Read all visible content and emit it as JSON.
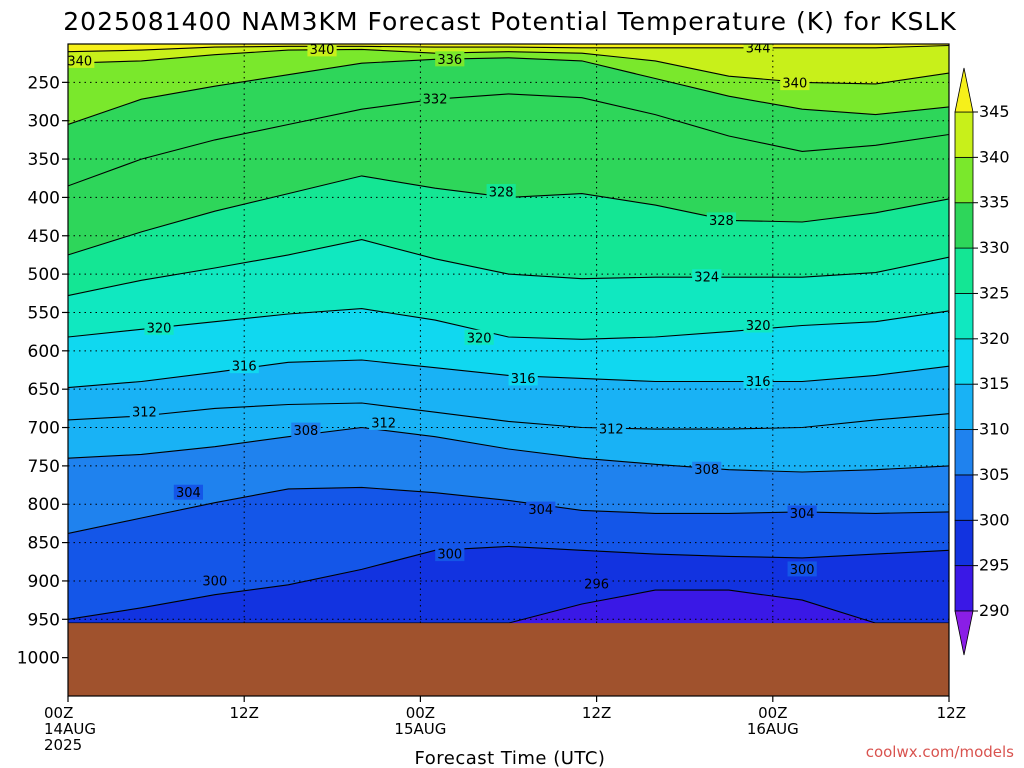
{
  "chart_data": {
    "type": "heatmap",
    "title": "2025081400 NAM3KM Forecast Potential Temperature (K) for KSLK",
    "xlabel": "Forecast Time (UTC)",
    "ylabel": "",
    "x_ticks": [
      {
        "hours": 0,
        "line1": "00Z",
        "line2": "14AUG",
        "line3": "2025"
      },
      {
        "hours": 12,
        "line1": "12Z",
        "line2": "",
        "line3": ""
      },
      {
        "hours": 24,
        "line1": "00Z",
        "line2": "15AUG",
        "line3": ""
      },
      {
        "hours": 36,
        "line1": "12Z",
        "line2": "",
        "line3": ""
      },
      {
        "hours": 48,
        "line1": "00Z",
        "line2": "16AUG",
        "line3": ""
      },
      {
        "hours": 60,
        "line1": "12Z",
        "line2": "",
        "line3": ""
      }
    ],
    "x_range_hours": [
      0,
      60
    ],
    "y_ticks_hpa": [
      250,
      300,
      350,
      400,
      450,
      500,
      550,
      600,
      650,
      700,
      750,
      800,
      850,
      900,
      950,
      1000
    ],
    "y_range_hpa": [
      200,
      1050
    ],
    "surface_pressure_hpa": 955,
    "colorbar": {
      "levels": [
        290,
        295,
        300,
        305,
        310,
        315,
        320,
        325,
        330,
        335,
        340,
        345
      ],
      "colors": [
        "#8a1ee6",
        "#3a18e6",
        "#1233e0",
        "#1456e8",
        "#1f82ee",
        "#19b2f5",
        "#10d8f0",
        "#10e8c0",
        "#14e694",
        "#2ed65a",
        "#7ae82c",
        "#c8f01a",
        "#f6f01a"
      ],
      "extend": "both"
    },
    "contour_labels": [
      {
        "text": "340",
        "hours": 0.8,
        "hpa": 222
      },
      {
        "text": "340",
        "hours": 17.3,
        "hpa": 207
      },
      {
        "text": "336",
        "hours": 26.0,
        "hpa": 220
      },
      {
        "text": "344",
        "hours": 47.0,
        "hpa": 205
      },
      {
        "text": "340",
        "hours": 49.5,
        "hpa": 251
      },
      {
        "text": "332",
        "hours": 25.0,
        "hpa": 272
      },
      {
        "text": "328",
        "hours": 29.5,
        "hpa": 393
      },
      {
        "text": "328",
        "hours": 44.5,
        "hpa": 430
      },
      {
        "text": "324",
        "hours": 43.5,
        "hpa": 504
      },
      {
        "text": "320",
        "hours": 6.2,
        "hpa": 570
      },
      {
        "text": "320",
        "hours": 28.0,
        "hpa": 583
      },
      {
        "text": "320",
        "hours": 47.0,
        "hpa": 567
      },
      {
        "text": "316",
        "hours": 12.0,
        "hpa": 620
      },
      {
        "text": "316",
        "hours": 31.0,
        "hpa": 636
      },
      {
        "text": "316",
        "hours": 47.0,
        "hpa": 640
      },
      {
        "text": "312",
        "hours": 5.2,
        "hpa": 680
      },
      {
        "text": "312",
        "hours": 21.5,
        "hpa": 694
      },
      {
        "text": "312",
        "hours": 37.0,
        "hpa": 702
      },
      {
        "text": "308",
        "hours": 16.2,
        "hpa": 704
      },
      {
        "text": "308",
        "hours": 43.5,
        "hpa": 755
      },
      {
        "text": "304",
        "hours": 8.2,
        "hpa": 785
      },
      {
        "text": "304",
        "hours": 32.2,
        "hpa": 807
      },
      {
        "text": "304",
        "hours": 50.0,
        "hpa": 812
      },
      {
        "text": "300",
        "hours": 10.0,
        "hpa": 900
      },
      {
        "text": "300",
        "hours": 26.0,
        "hpa": 865
      },
      {
        "text": "300",
        "hours": 50.0,
        "hpa": 885
      },
      {
        "text": "296",
        "hours": 36.0,
        "hpa": 904
      }
    ],
    "isentropes": [
      {
        "level": 296,
        "hpa": [
          955,
          955,
          955,
          955,
          955,
          955,
          955,
          930,
          912,
          912,
          925,
          955,
          955
        ]
      },
      {
        "level": 300,
        "hpa": [
          950,
          935,
          918,
          905,
          885,
          860,
          855,
          860,
          865,
          868,
          870,
          865,
          860
        ]
      },
      {
        "level": 304,
        "hpa": [
          838,
          818,
          798,
          780,
          778,
          785,
          795,
          808,
          812,
          812,
          810,
          812,
          810
        ]
      },
      {
        "level": 308,
        "hpa": [
          740,
          735,
          725,
          712,
          700,
          712,
          728,
          740,
          748,
          755,
          758,
          755,
          750
        ]
      },
      {
        "level": 312,
        "hpa": [
          690,
          685,
          675,
          670,
          668,
          680,
          692,
          700,
          702,
          702,
          700,
          690,
          682
        ]
      },
      {
        "level": 316,
        "hpa": [
          648,
          640,
          628,
          615,
          612,
          622,
          632,
          636,
          640,
          640,
          640,
          632,
          620
        ]
      },
      {
        "level": 320,
        "hpa": [
          582,
          572,
          562,
          552,
          545,
          560,
          582,
          585,
          582,
          575,
          567,
          562,
          548
        ]
      },
      {
        "level": 324,
        "hpa": [
          528,
          508,
          492,
          475,
          455,
          480,
          500,
          506,
          504,
          504,
          504,
          498,
          478
        ]
      },
      {
        "level": 328,
        "hpa": [
          475,
          445,
          418,
          395,
          372,
          388,
          400,
          395,
          410,
          430,
          432,
          420,
          402
        ]
      },
      {
        "level": 332,
        "hpa": [
          385,
          350,
          325,
          305,
          285,
          272,
          265,
          270,
          292,
          320,
          340,
          332,
          318
        ]
      },
      {
        "level": 336,
        "hpa": [
          305,
          272,
          255,
          240,
          225,
          220,
          218,
          222,
          245,
          268,
          285,
          292,
          282
        ]
      },
      {
        "level": 340,
        "hpa": [
          225,
          222,
          214,
          208,
          207,
          212,
          210,
          212,
          222,
          242,
          250,
          252,
          238
        ]
      },
      {
        "level": 344,
        "hpa": [
          210,
          208,
          204,
          203,
          203,
          204,
          204,
          205,
          205,
          205,
          205,
          205,
          202
        ]
      }
    ]
  },
  "footer": {
    "credit": "coolwx.com/models"
  }
}
